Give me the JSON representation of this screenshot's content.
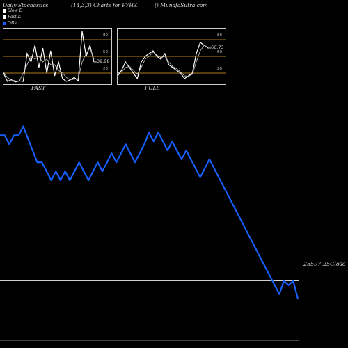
{
  "header": {
    "left": "Daily Stochastics",
    "center": "(14,3,3) Charts for FYHZ",
    "right": "() MunafaSutra.com"
  },
  "legend": [
    {
      "label": "Slow  D",
      "color": "#ffffff"
    },
    {
      "label": "Fast K",
      "color": "#ffffff"
    },
    {
      "label": "OBV",
      "color": "#1560ff"
    }
  ],
  "colors": {
    "background": "#000000",
    "obv": "#1560ff",
    "stoch": "#ffffff",
    "level": "#b07a1e",
    "close_line": "#d0d0d0"
  },
  "chart_data": [
    {
      "type": "line",
      "title": "FAST",
      "ylim": [
        0,
        100
      ],
      "yticks": [
        20,
        50,
        80
      ],
      "last_value_label": "39.98",
      "series": [
        {
          "name": "Fast K",
          "values": [
            20,
            5,
            8,
            4,
            6,
            5,
            55,
            40,
            70,
            30,
            65,
            20,
            60,
            15,
            40,
            10,
            5,
            8,
            12,
            6,
            95,
            50,
            70,
            40
          ]
        },
        {
          "name": "Slow D",
          "values": [
            22,
            12,
            8,
            6,
            5,
            20,
            35,
            50,
            45,
            50,
            40,
            45,
            35,
            35,
            25,
            20,
            12,
            8,
            9,
            10,
            40,
            55,
            65,
            45
          ]
        }
      ]
    },
    {
      "type": "line",
      "title": "FULL",
      "ylim": [
        0,
        100
      ],
      "yticks": [
        20,
        50,
        80
      ],
      "last_value_label": "66.73",
      "series": [
        {
          "name": "Full K",
          "values": [
            15,
            25,
            40,
            30,
            20,
            10,
            40,
            50,
            55,
            60,
            50,
            45,
            55,
            35,
            30,
            25,
            20,
            10,
            15,
            20,
            55,
            75,
            70,
            65
          ]
        },
        {
          "name": "Full D",
          "values": [
            20,
            22,
            30,
            32,
            25,
            18,
            30,
            45,
            50,
            58,
            52,
            48,
            50,
            40,
            32,
            28,
            22,
            15,
            14,
            18,
            40,
            60,
            70,
            66
          ]
        }
      ]
    },
    {
      "type": "line",
      "title": "",
      "xlabel": "",
      "ylabel": "",
      "close_label": "25597.25Close",
      "close_level": 25597.25,
      "ylim": [
        25520,
        25880
      ],
      "series": [
        {
          "name": "OBV",
          "values": [
            25840,
            25840,
            25825,
            25840,
            25840,
            25855,
            25835,
            25815,
            25795,
            25795,
            25780,
            25765,
            25780,
            25765,
            25780,
            25765,
            25780,
            25795,
            25780,
            25765,
            25780,
            25795,
            25780,
            25795,
            25810,
            25795,
            25810,
            25825,
            25810,
            25795,
            25810,
            25825,
            25845,
            25830,
            25845,
            25830,
            25815,
            25830,
            25815,
            25800,
            25815,
            25800,
            25785,
            25770,
            25785,
            25800,
            25785,
            25770,
            25755,
            25740,
            25725,
            25710,
            25695,
            25680,
            25665,
            25650,
            25635,
            25620,
            25605,
            25590,
            25575,
            25597,
            25590,
            25597,
            25567
          ]
        }
      ]
    }
  ]
}
